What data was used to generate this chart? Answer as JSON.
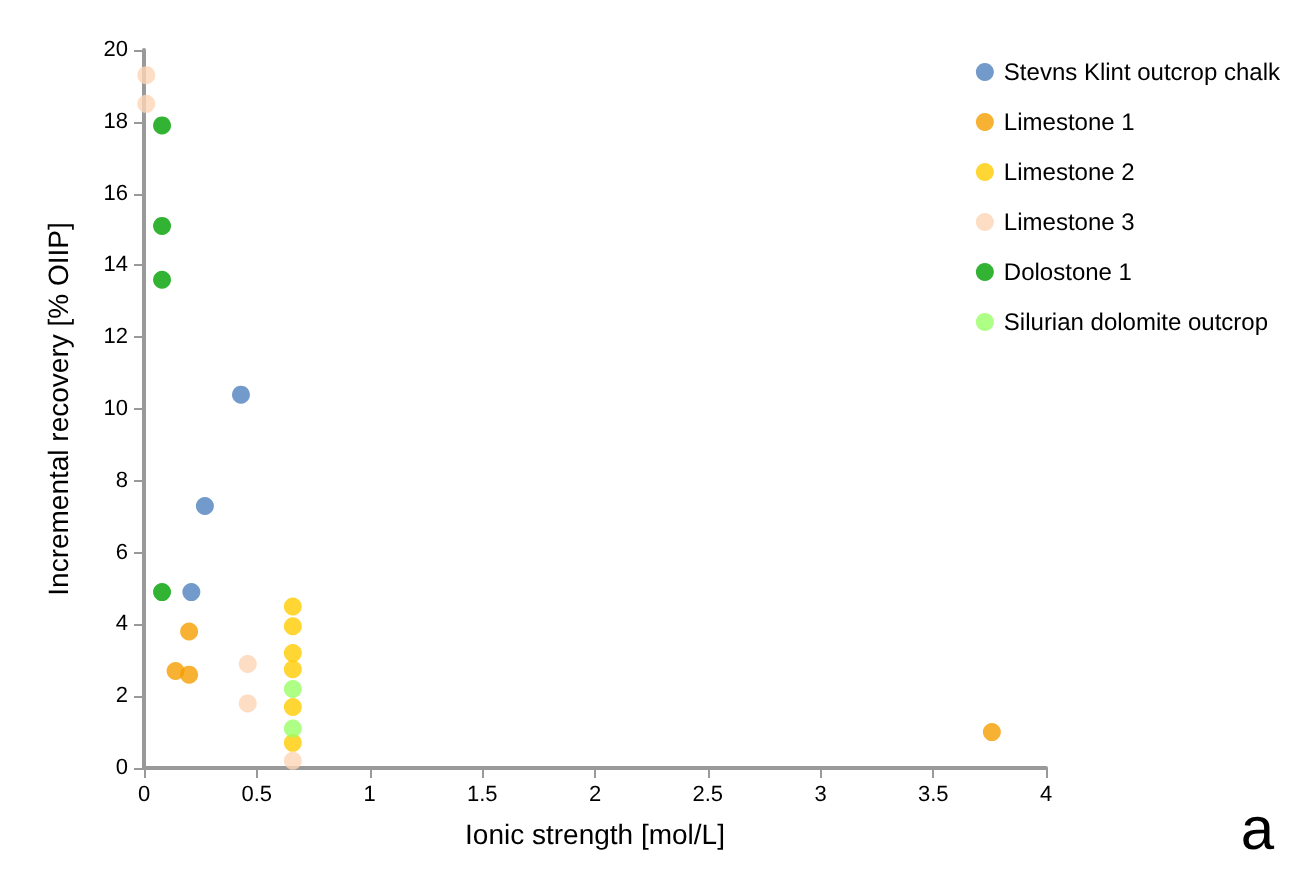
{
  "chart_data": {
    "type": "scatter",
    "xlabel": "Ionic strength [mol/L]",
    "ylabel": "Incremental recovery [% OIIP]",
    "annotations": [
      "a"
    ],
    "xlim": [
      0,
      4
    ],
    "xticks": [
      0,
      0.5,
      1,
      1.5,
      2,
      2.5,
      3,
      3.5,
      4
    ],
    "ylim": [
      0,
      20
    ],
    "yticks": [
      0,
      2,
      4,
      6,
      8,
      10,
      12,
      14,
      16,
      18,
      20
    ],
    "grid": false,
    "legend": "top right",
    "marker": "circle",
    "series": [
      {
        "name": "Stevns Klint outcrop chalk",
        "color": "#4f81bd",
        "x": [
          0.21,
          0.27,
          0.43
        ],
        "values": [
          4.9,
          7.3,
          10.4
        ]
      },
      {
        "name": "Limestone 1",
        "color": "#f59d00",
        "x": [
          0.14,
          0.2,
          0.2,
          3.76
        ],
        "values": [
          2.7,
          2.6,
          3.8,
          1.0
        ]
      },
      {
        "name": "Limestone 2",
        "color": "#ffcc00",
        "x": [
          0.66,
          0.66,
          0.66,
          0.66,
          0.66,
          0.66
        ],
        "values": [
          4.5,
          3.95,
          3.2,
          2.75,
          1.7,
          0.7
        ]
      },
      {
        "name": "Limestone 3",
        "color": "#fcd5b5",
        "x": [
          0.01,
          0.01,
          0.46,
          0.46,
          0.66
        ],
        "values": [
          19.3,
          18.5,
          2.9,
          1.8,
          0.2
        ]
      },
      {
        "name": "Dolostone 1",
        "color": "#00a000",
        "x": [
          0.08,
          0.08,
          0.08,
          0.08
        ],
        "values": [
          17.9,
          15.1,
          13.6,
          4.9
        ]
      },
      {
        "name": "Silurian dolomite outcrop",
        "color": "#99ff66",
        "x": [
          0.66,
          0.66
        ],
        "values": [
          2.2,
          1.1
        ]
      }
    ]
  }
}
